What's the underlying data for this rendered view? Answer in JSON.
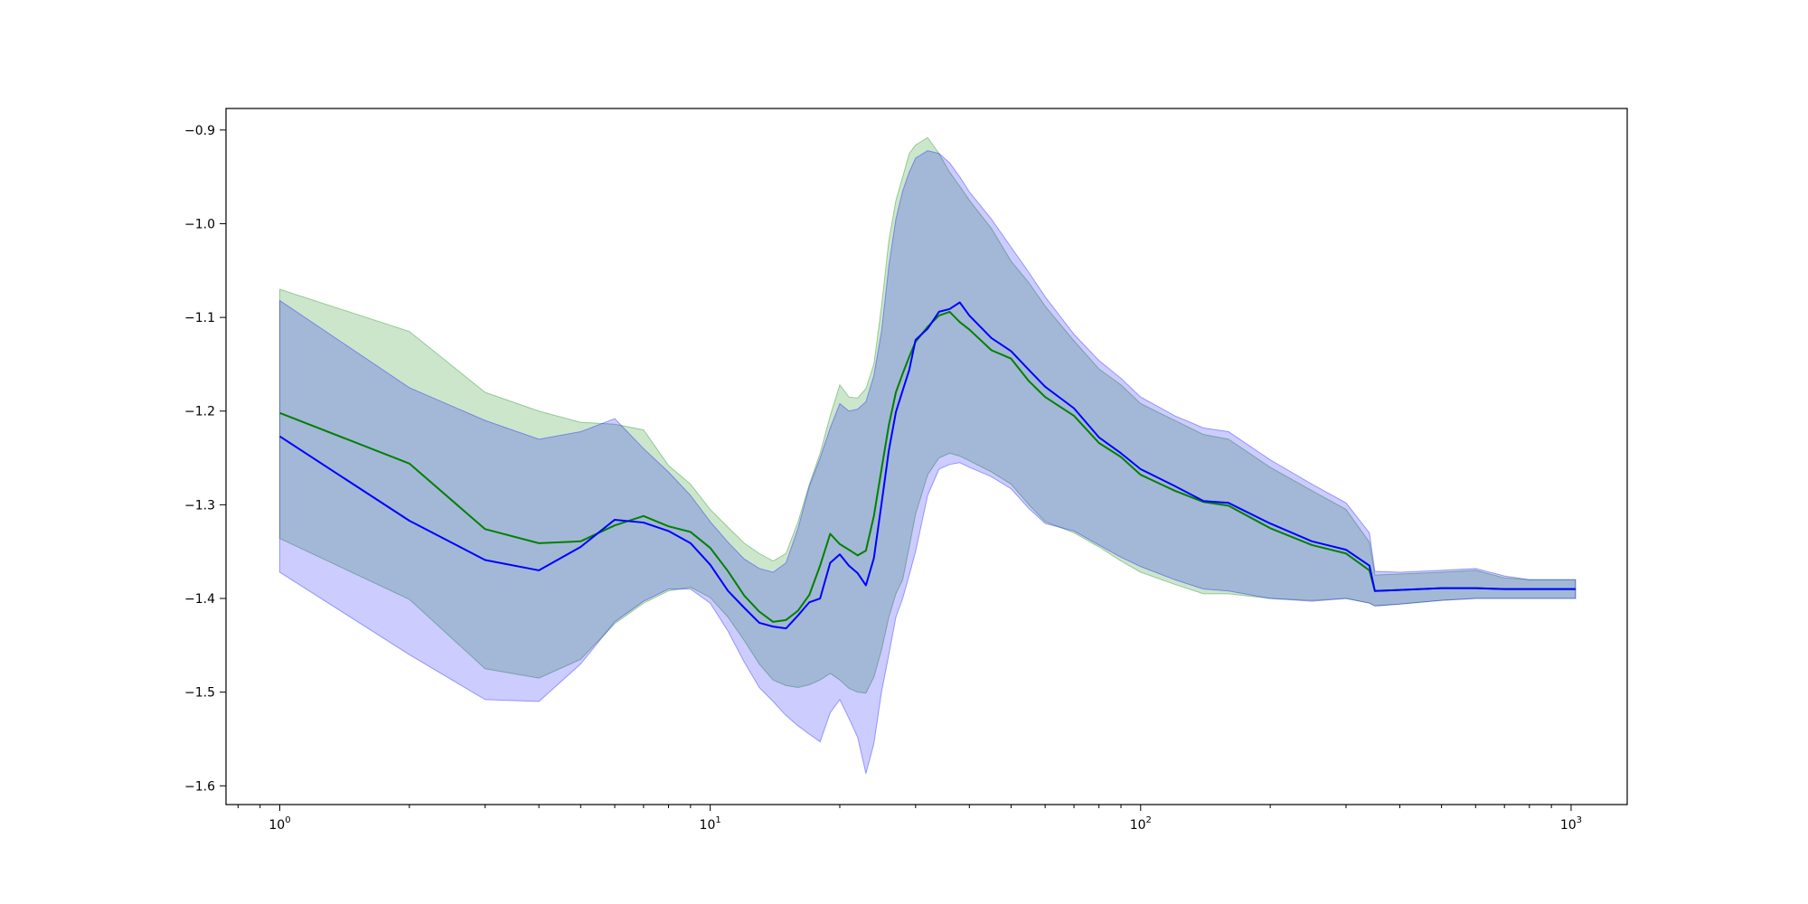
{
  "chart_data": {
    "type": "line",
    "title": "",
    "xlabel": "",
    "ylabel": "",
    "x_scale": "log",
    "xlim": [
      0.75,
      1350
    ],
    "ylim": [
      -1.62,
      -0.877
    ],
    "grid": false,
    "x_ticks": [
      {
        "value": 1,
        "base": "10",
        "exp": "0"
      },
      {
        "value": 10,
        "base": "10",
        "exp": "1"
      },
      {
        "value": 100,
        "base": "10",
        "exp": "2"
      },
      {
        "value": 1000,
        "base": "10",
        "exp": "3"
      }
    ],
    "y_ticks": [
      {
        "value": -0.9,
        "label": "−0.9"
      },
      {
        "value": -1.0,
        "label": "−1.0"
      },
      {
        "value": -1.1,
        "label": "−1.1"
      },
      {
        "value": -1.2,
        "label": "−1.2"
      },
      {
        "value": -1.3,
        "label": "−1.3"
      },
      {
        "value": -1.4,
        "label": "−1.4"
      },
      {
        "value": -1.5,
        "label": "−1.5"
      },
      {
        "value": -1.6,
        "label": "−1.6"
      }
    ],
    "series": [
      {
        "color": "#008000",
        "band_color": "#008000",
        "band_opacity": 0.2,
        "x": [
          1,
          2,
          3,
          4,
          5,
          6,
          7,
          8,
          9,
          10,
          11,
          12,
          13,
          14,
          15,
          16,
          17,
          18,
          19,
          20,
          21,
          22,
          23,
          24,
          25,
          26,
          27,
          28,
          29,
          30,
          32,
          34,
          36,
          38,
          40,
          45,
          50,
          55,
          60,
          70,
          80,
          90,
          100,
          120,
          140,
          160,
          200,
          250,
          300,
          340,
          350,
          400,
          500,
          600,
          700,
          800,
          1000,
          1024
        ],
        "mean": [
          -1.202,
          -1.256,
          -1.326,
          -1.341,
          -1.339,
          -1.322,
          -1.312,
          -1.323,
          -1.329,
          -1.346,
          -1.371,
          -1.397,
          -1.414,
          -1.425,
          -1.423,
          -1.413,
          -1.396,
          -1.365,
          -1.331,
          -1.342,
          -1.348,
          -1.354,
          -1.349,
          -1.312,
          -1.262,
          -1.215,
          -1.18,
          -1.16,
          -1.142,
          -1.126,
          -1.11,
          -1.098,
          -1.094,
          -1.105,
          -1.113,
          -1.135,
          -1.144,
          -1.168,
          -1.185,
          -1.205,
          -1.234,
          -1.249,
          -1.268,
          -1.285,
          -1.297,
          -1.301,
          -1.325,
          -1.343,
          -1.352,
          -1.37,
          -1.392,
          -1.391,
          -1.389,
          -1.389,
          -1.39,
          -1.39,
          -1.39,
          -1.39
        ],
        "lower": [
          -1.336,
          -1.401,
          -1.475,
          -1.485,
          -1.465,
          -1.427,
          -1.405,
          -1.392,
          -1.388,
          -1.399,
          -1.42,
          -1.445,
          -1.47,
          -1.487,
          -1.493,
          -1.495,
          -1.492,
          -1.487,
          -1.48,
          -1.487,
          -1.496,
          -1.5,
          -1.501,
          -1.484,
          -1.455,
          -1.42,
          -1.395,
          -1.38,
          -1.345,
          -1.31,
          -1.268,
          -1.25,
          -1.245,
          -1.248,
          -1.253,
          -1.265,
          -1.278,
          -1.3,
          -1.318,
          -1.33,
          -1.345,
          -1.36,
          -1.372,
          -1.385,
          -1.395,
          -1.395,
          -1.4,
          -1.402,
          -1.4,
          -1.405,
          -1.408,
          -1.406,
          -1.402,
          -1.4,
          -1.4,
          -1.4,
          -1.4,
          -1.4
        ],
        "upper": [
          -1.07,
          -1.115,
          -1.18,
          -1.2,
          -1.212,
          -1.214,
          -1.22,
          -1.258,
          -1.278,
          -1.305,
          -1.324,
          -1.341,
          -1.352,
          -1.36,
          -1.352,
          -1.318,
          -1.278,
          -1.245,
          -1.205,
          -1.172,
          -1.185,
          -1.186,
          -1.176,
          -1.15,
          -1.088,
          -1.018,
          -0.975,
          -0.95,
          -0.925,
          -0.916,
          -0.908,
          -0.925,
          -0.945,
          -0.96,
          -0.975,
          -1.005,
          -1.04,
          -1.063,
          -1.088,
          -1.125,
          -1.155,
          -1.172,
          -1.192,
          -1.21,
          -1.225,
          -1.23,
          -1.26,
          -1.285,
          -1.305,
          -1.34,
          -1.375,
          -1.374,
          -1.372,
          -1.37,
          -1.378,
          -1.38,
          -1.38,
          -1.38
        ]
      },
      {
        "color": "#0000ff",
        "band_color": "#0000ff",
        "band_opacity": 0.2,
        "x": [
          1,
          2,
          3,
          4,
          5,
          6,
          7,
          8,
          9,
          10,
          11,
          12,
          13,
          14,
          15,
          16,
          17,
          18,
          19,
          20,
          21,
          22,
          23,
          24,
          25,
          26,
          27,
          28,
          29,
          30,
          32,
          34,
          36,
          38,
          40,
          45,
          50,
          55,
          60,
          70,
          80,
          90,
          100,
          120,
          140,
          160,
          200,
          250,
          300,
          340,
          350,
          400,
          500,
          600,
          700,
          800,
          1000,
          1024
        ],
        "mean": [
          -1.227,
          -1.317,
          -1.359,
          -1.37,
          -1.345,
          -1.316,
          -1.319,
          -1.328,
          -1.341,
          -1.364,
          -1.392,
          -1.41,
          -1.426,
          -1.43,
          -1.432,
          -1.418,
          -1.404,
          -1.4,
          -1.362,
          -1.353,
          -1.365,
          -1.373,
          -1.386,
          -1.357,
          -1.299,
          -1.242,
          -1.201,
          -1.178,
          -1.156,
          -1.124,
          -1.112,
          -1.094,
          -1.091,
          -1.084,
          -1.098,
          -1.122,
          -1.136,
          -1.156,
          -1.174,
          -1.197,
          -1.228,
          -1.245,
          -1.262,
          -1.28,
          -1.296,
          -1.298,
          -1.32,
          -1.339,
          -1.348,
          -1.365,
          -1.392,
          -1.391,
          -1.389,
          -1.389,
          -1.39,
          -1.39,
          -1.39,
          -1.39
        ],
        "lower": [
          -1.372,
          -1.46,
          -1.508,
          -1.51,
          -1.47,
          -1.425,
          -1.403,
          -1.39,
          -1.39,
          -1.405,
          -1.435,
          -1.468,
          -1.495,
          -1.51,
          -1.525,
          -1.536,
          -1.545,
          -1.553,
          -1.522,
          -1.508,
          -1.528,
          -1.548,
          -1.587,
          -1.555,
          -1.5,
          -1.46,
          -1.42,
          -1.4,
          -1.375,
          -1.35,
          -1.29,
          -1.262,
          -1.257,
          -1.255,
          -1.26,
          -1.27,
          -1.283,
          -1.304,
          -1.32,
          -1.328,
          -1.343,
          -1.356,
          -1.366,
          -1.38,
          -1.39,
          -1.392,
          -1.4,
          -1.403,
          -1.4,
          -1.405,
          -1.408,
          -1.406,
          -1.402,
          -1.4,
          -1.4,
          -1.4,
          -1.4,
          -1.4
        ],
        "upper": [
          -1.082,
          -1.175,
          -1.21,
          -1.23,
          -1.222,
          -1.208,
          -1.24,
          -1.265,
          -1.29,
          -1.318,
          -1.34,
          -1.358,
          -1.368,
          -1.372,
          -1.362,
          -1.325,
          -1.28,
          -1.25,
          -1.218,
          -1.192,
          -1.2,
          -1.198,
          -1.19,
          -1.162,
          -1.115,
          -1.045,
          -0.995,
          -0.965,
          -0.945,
          -0.93,
          -0.922,
          -0.925,
          -0.935,
          -0.95,
          -0.966,
          -0.995,
          -1.025,
          -1.052,
          -1.078,
          -1.118,
          -1.146,
          -1.165,
          -1.185,
          -1.205,
          -1.218,
          -1.222,
          -1.252,
          -1.278,
          -1.298,
          -1.33,
          -1.371,
          -1.372,
          -1.37,
          -1.368,
          -1.376,
          -1.38,
          -1.38,
          -1.38
        ]
      }
    ]
  }
}
